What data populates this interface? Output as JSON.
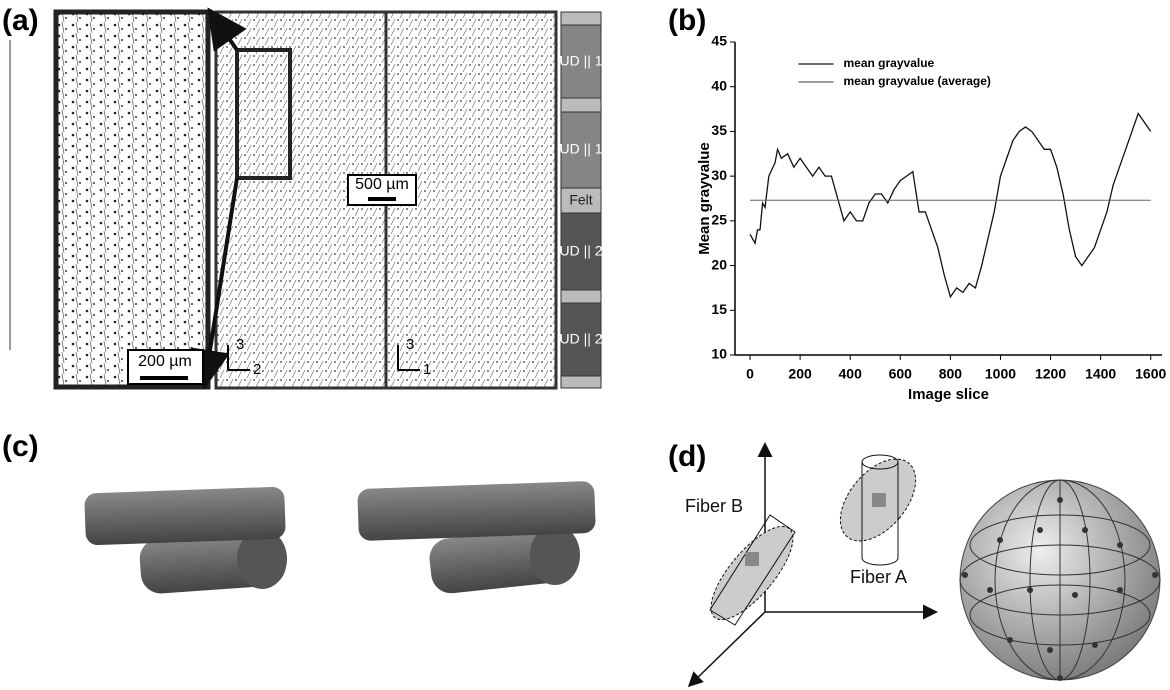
{
  "panel_labels": [
    "(a)",
    "(b)",
    "(c)",
    "(d)"
  ],
  "panel_a": {
    "layers": [
      "UD || 1",
      "UD || 1",
      "Felt",
      "UD || 2",
      "UD || 2"
    ],
    "scale_bars": [
      "200 µm",
      "500 µm"
    ],
    "axis_labels": [
      "3",
      "2",
      "3",
      "1"
    ]
  },
  "panel_d": {
    "fibers": [
      "Fiber B",
      "Fiber A"
    ]
  },
  "chart_data": {
    "type": "line",
    "x_label": "Image slice",
    "y_label": "Mean grayvalue",
    "xlim": [
      -60,
      1645
    ],
    "ylim": [
      10,
      45
    ],
    "xticks": [
      0,
      200,
      400,
      600,
      800,
      1000,
      1200,
      1400,
      1600
    ],
    "yticks": [
      10,
      15,
      20,
      25,
      30,
      35,
      40,
      45
    ],
    "legend": "upper center",
    "series": [
      {
        "name": "mean grayvalue",
        "color": "#111111",
        "x": [
          0,
          10,
          20,
          30,
          40,
          50,
          60,
          75,
          100,
          110,
          125,
          150,
          175,
          200,
          225,
          250,
          275,
          300,
          325,
          350,
          375,
          400,
          425,
          450,
          475,
          500,
          525,
          550,
          575,
          600,
          625,
          650,
          675,
          700,
          725,
          750,
          775,
          800,
          825,
          850,
          875,
          900,
          925,
          950,
          975,
          1000,
          1025,
          1050,
          1075,
          1100,
          1125,
          1150,
          1175,
          1200,
          1225,
          1250,
          1275,
          1300,
          1325,
          1350,
          1375,
          1400,
          1425,
          1450,
          1475,
          1500,
          1525,
          1550,
          1575,
          1600
        ],
        "values": [
          23.5,
          23,
          22.5,
          24,
          24,
          27,
          26.5,
          30,
          31.5,
          33,
          32,
          32.5,
          31,
          32,
          31,
          30,
          31,
          30,
          30,
          27.5,
          25,
          26,
          25,
          25,
          27,
          28,
          28,
          27,
          28.5,
          29.5,
          30,
          30.5,
          26,
          26,
          24,
          22,
          19,
          16.5,
          17.5,
          17,
          18,
          17.5,
          20,
          23,
          26,
          30,
          32,
          34,
          35,
          35.5,
          35,
          34,
          33,
          33,
          31,
          28,
          24,
          21,
          20,
          21,
          22,
          24,
          26,
          29,
          31,
          33,
          35,
          37,
          36,
          35
        ]
      },
      {
        "name": "mean grayvalue (average)",
        "color": "#666666",
        "x": [
          0,
          1600
        ],
        "values": [
          27.3,
          27.3
        ]
      }
    ]
  }
}
